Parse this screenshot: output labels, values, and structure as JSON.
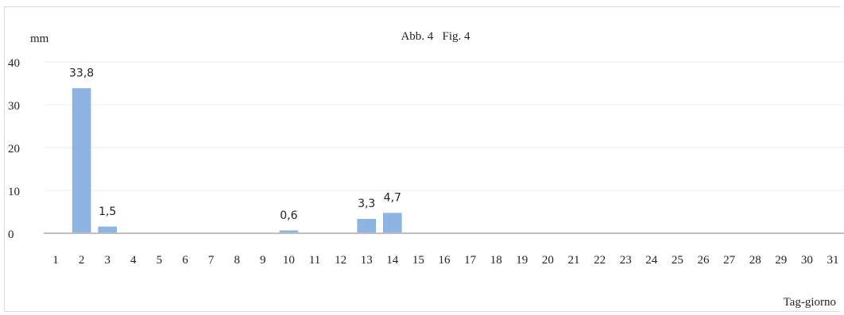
{
  "chart_data": {
    "type": "bar",
    "title": "Abb. 4   Fig. 4",
    "ylabel": "mm",
    "xlabel": "Tag-giorno",
    "ylim": [
      0,
      40
    ],
    "yticks": [
      0,
      10,
      20,
      30,
      40
    ],
    "grid": true,
    "categories": [
      "1",
      "2",
      "3",
      "4",
      "5",
      "6",
      "7",
      "8",
      "9",
      "10",
      "11",
      "12",
      "13",
      "14",
      "15",
      "16",
      "17",
      "18",
      "19",
      "20",
      "21",
      "22",
      "23",
      "24",
      "25",
      "26",
      "27",
      "28",
      "29",
      "30",
      "31"
    ],
    "values": [
      0,
      33.8,
      1.5,
      0,
      0,
      0,
      0,
      0,
      0,
      0.6,
      0,
      0,
      3.3,
      4.7,
      0,
      0,
      0,
      0,
      0,
      0,
      0,
      0,
      0,
      0,
      0,
      0,
      0,
      0,
      0,
      0,
      0
    ],
    "data_labels": [
      "",
      "33,8",
      "1,5",
      "",
      "",
      "",
      "",
      "",
      "",
      "0,6",
      "",
      "",
      "3,3",
      "4,7",
      "",
      "",
      "",
      "",
      "",
      "",
      "",
      "",
      "",
      "",
      "",
      "",
      "",
      "",
      "",
      "",
      ""
    ],
    "colors": {
      "bar": "#8db4e2",
      "bar_stroke": "#7aa6d8",
      "grid": "#ececec",
      "axis": "#bfbfbf",
      "text": "#222222"
    }
  }
}
